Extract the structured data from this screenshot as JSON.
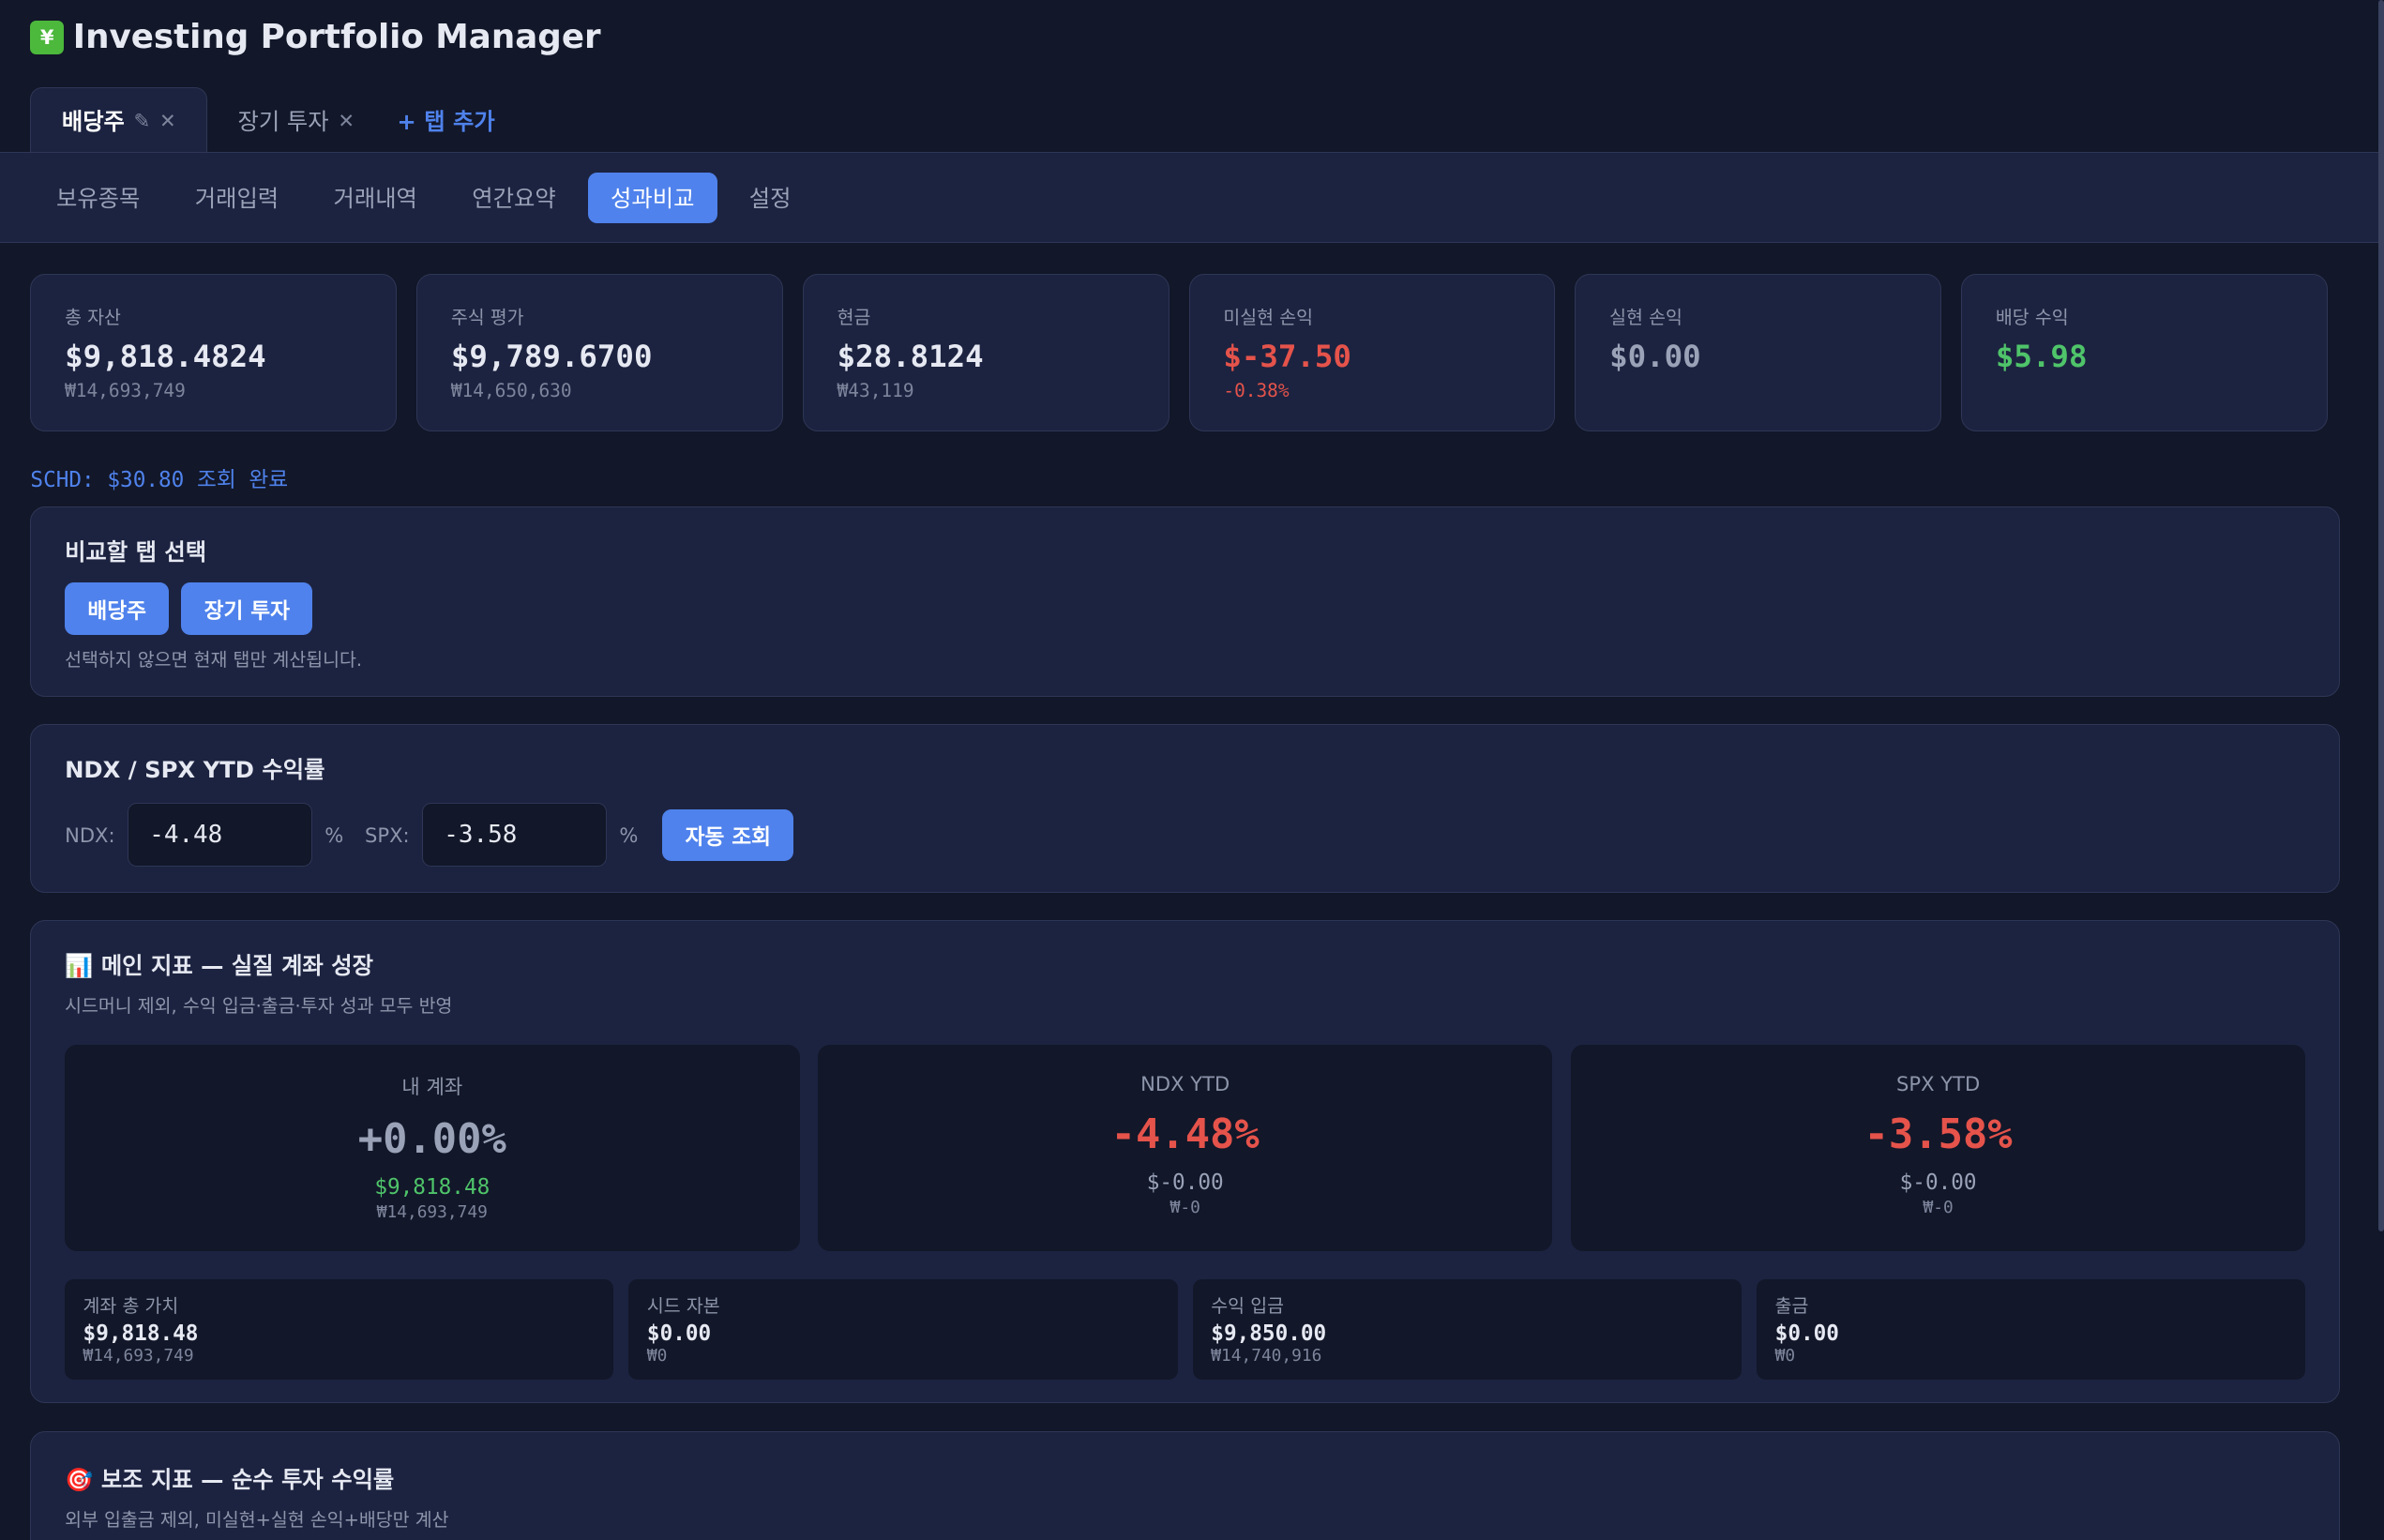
{
  "app": {
    "title": "Investing Portfolio Manager",
    "logo_icon": "chart-yen-icon"
  },
  "tabs": [
    {
      "label": "배당주",
      "edit": "✎",
      "close": "✕"
    },
    {
      "label": "장기 투자",
      "close": "✕"
    }
  ],
  "add_tab": "+ 탭 추가",
  "subnav": [
    "보유종목",
    "거래입력",
    "거래내역",
    "연간요약",
    "성과비교",
    "설정"
  ],
  "cards": [
    {
      "label": "총 자산",
      "value": "$9,818.4824",
      "sub": "₩14,693,749"
    },
    {
      "label": "주식 평가",
      "value": "$9,789.6700",
      "sub": "₩14,650,630"
    },
    {
      "label": "현금",
      "value": "$28.8124",
      "sub": "₩43,119"
    },
    {
      "label": "미실현 손익",
      "value": "$-37.50",
      "sub": "-0.38%"
    },
    {
      "label": "실현 손익",
      "value": "$0.00",
      "sub": ""
    },
    {
      "label": "배당 수익",
      "value": "$5.98",
      "sub": ""
    }
  ],
  "status": "SCHD: $30.80 조회 완료",
  "compare": {
    "title": "비교할 탭 선택",
    "buttons": [
      "배당주",
      "장기 투자"
    ],
    "hint": "선택하지 않으면 현재 탭만 계산됩니다."
  },
  "ytd": {
    "title": "NDX / SPX YTD 수익률",
    "ndx_label": "NDX:",
    "ndx_value": "-4.48",
    "spx_label": "SPX:",
    "spx_value": "-3.58",
    "pct": "%",
    "auto": "자동 조회"
  },
  "main": {
    "icon": "📊",
    "title": "메인 지표 — 실질 계좌 성장",
    "desc": "시드머니 제외, 수익 입금·출금·투자 성과 모두 반영",
    "big": [
      {
        "label": "내 계좌",
        "pct": "+0.00%",
        "usd": "$9,818.48",
        "krw": "₩14,693,749"
      },
      {
        "label": "NDX YTD",
        "pct": "-4.48%",
        "usd": "$-0.00",
        "krw": "₩-0"
      },
      {
        "label": "SPX YTD",
        "pct": "-3.58%",
        "usd": "$-0.00",
        "krw": "₩-0"
      }
    ],
    "small": [
      {
        "label": "계좌 총 가치",
        "usd": "$9,818.48",
        "krw": "₩14,693,749"
      },
      {
        "label": "시드 자본",
        "usd": "$0.00",
        "krw": "₩0"
      },
      {
        "label": "수익 입금",
        "usd": "$9,850.00",
        "krw": "₩14,740,916"
      },
      {
        "label": "출금",
        "usd": "$0.00",
        "krw": "₩0"
      }
    ]
  },
  "secondary": {
    "icon": "🎯",
    "title": "보조 지표 — 순수 투자 수익률",
    "desc": "외부 입출금 제외, 미실현+실현 손익+배당만 계산"
  },
  "colors": {
    "accent": "#4f82ec",
    "negative": "#e5534b",
    "positive": "#4fc46a",
    "bg": "#121729",
    "panel": "#1c2340"
  }
}
